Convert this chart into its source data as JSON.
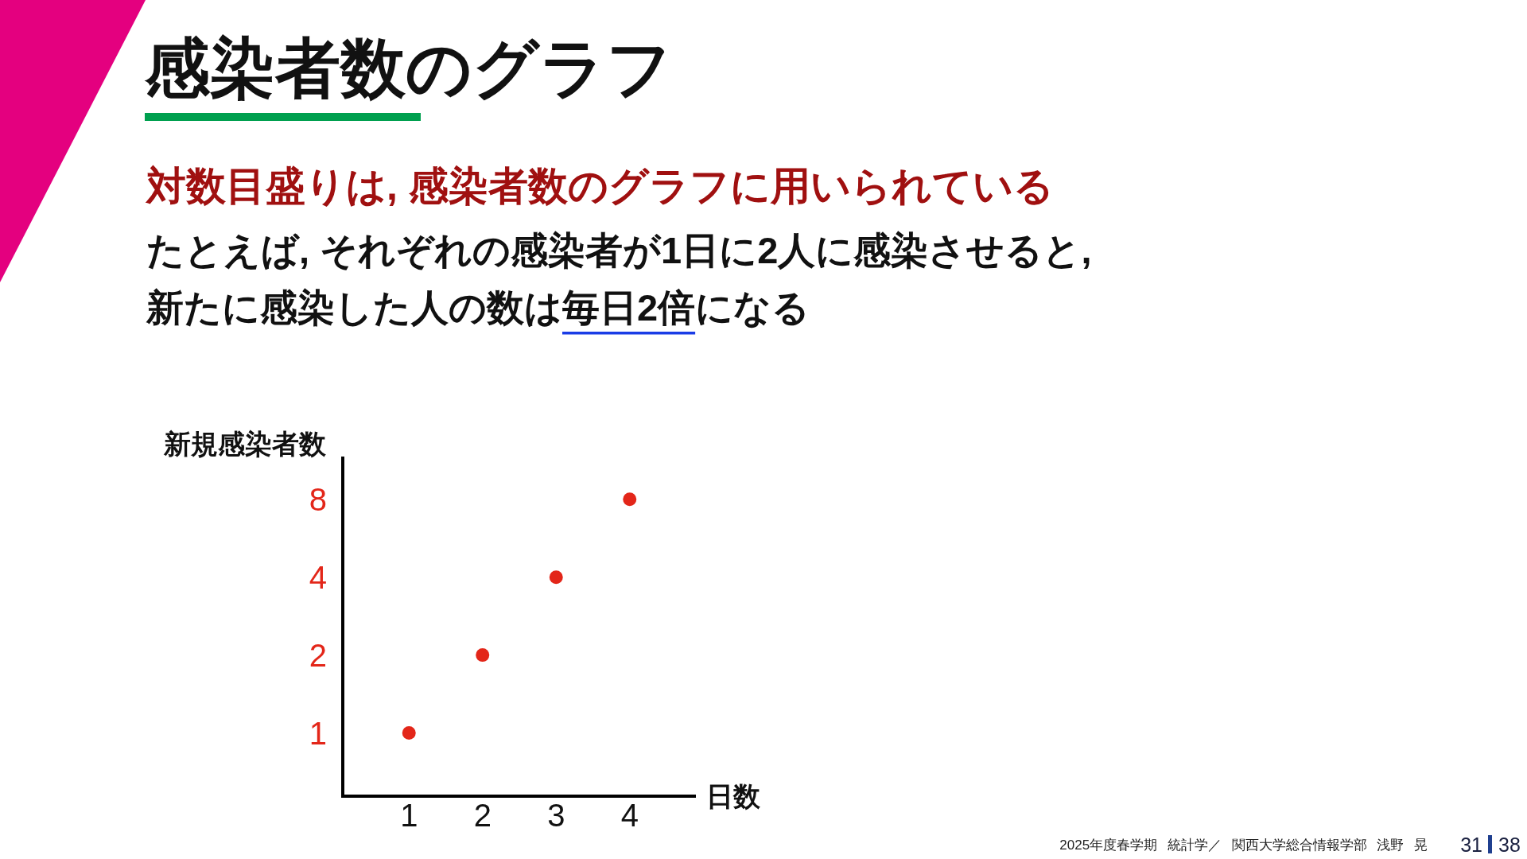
{
  "chart_data": {
    "type": "scatter",
    "title": "感染者数のグラフ",
    "subtitle": "対数目盛りは, 感染者数のグラフに用いられている",
    "annotations": [
      "たとえば, それぞれの感染者が1日に2人に感染させると,",
      "新たに感染した人の数は毎日2倍になる",
      "2025年度春学期 統計学／ 関西大学総合情報学部 浅野 晃",
      "31",
      "38"
    ],
    "xlabel": "日数",
    "ylabel": "新規感染者数",
    "x": [
      1,
      2,
      3,
      4
    ],
    "values": [
      1,
      2,
      4,
      8
    ],
    "color": "#e32619",
    "log": "y",
    "xlim": [
      0.1,
      4.9
    ],
    "ylim": [
      0.57,
      11.7
    ],
    "xticks": [
      1,
      2,
      3,
      4
    ],
    "yticks": [
      1,
      2,
      4,
      8
    ],
    "marker": "circle"
  }
}
